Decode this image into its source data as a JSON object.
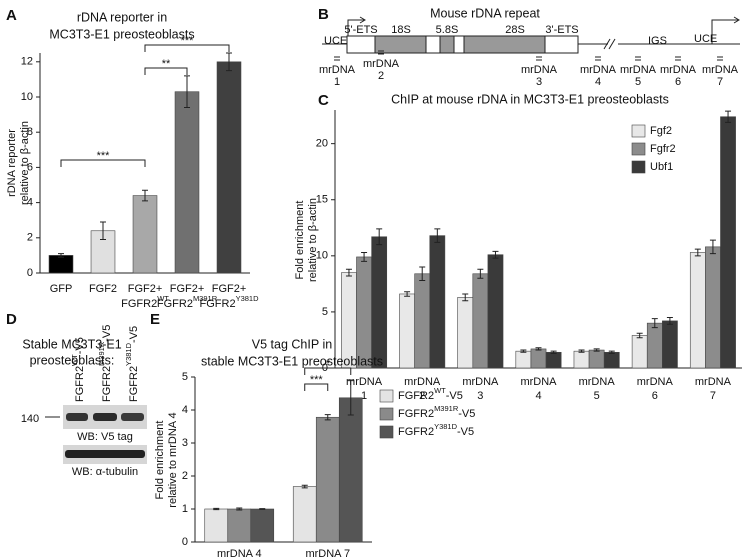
{
  "chart_data": [
    {
      "type": "bar",
      "panel_label": "A",
      "title": [
        "rDNA reporter in",
        "MC3T3-E1 preosteoblasts"
      ],
      "ylabel": [
        "rDNA reporter",
        "relative to  β-actin"
      ],
      "categories": [
        "GFP",
        "FGF2",
        "FGF2+",
        "FGF2+",
        "FGF2+"
      ],
      "category_sublabels": [
        null,
        null,
        "FGFR2",
        "FGFR2",
        "FGFR2"
      ],
      "category_superscripts": [
        null,
        null,
        "WT",
        "M391R",
        "Y381D"
      ],
      "values": [
        1.0,
        2.4,
        4.4,
        10.3,
        12.0
      ],
      "errors": [
        0.1,
        0.5,
        0.3,
        0.9,
        0.5
      ],
      "colors": [
        "#000000",
        "#e0e0e0",
        "#a8a8a8",
        "#707070",
        "#404040"
      ],
      "ylim": [
        0,
        12.5
      ],
      "yticks": [
        0,
        2,
        4,
        6,
        8,
        10,
        12
      ],
      "annotations": [
        "***",
        "**",
        "***"
      ]
    },
    {
      "type": "grouped_bar",
      "panel_label": "C",
      "title": [
        "ChIP at mouse rDNA in MC3T3-E1 preosteoblasts"
      ],
      "ylabel": [
        "Fold enrichment",
        "relative to β-actin"
      ],
      "category_prefix": "mrDNA",
      "categories": [
        "1",
        "2",
        "3",
        "4",
        "5",
        "6",
        "7"
      ],
      "series": [
        {
          "name": "Fgf2",
          "color": "#e8e8e8",
          "values": [
            8.5,
            6.6,
            6.3,
            1.5,
            1.5,
            2.9,
            10.3
          ],
          "errors": [
            0.3,
            0.2,
            0.3,
            0.1,
            0.1,
            0.2,
            0.3
          ]
        },
        {
          "name": "Fgfr2",
          "color": "#8c8c8c",
          "values": [
            9.9,
            8.4,
            8.4,
            1.7,
            1.6,
            4.0,
            10.8
          ],
          "errors": [
            0.4,
            0.6,
            0.4,
            0.1,
            0.1,
            0.4,
            0.6
          ]
        },
        {
          "name": "Ubf1",
          "color": "#3a3a3a",
          "values": [
            11.7,
            11.8,
            10.1,
            1.4,
            1.4,
            4.2,
            22.4
          ],
          "errors": [
            0.7,
            0.6,
            0.3,
            0.1,
            0.1,
            0.3,
            0.5
          ]
        }
      ],
      "ylim": [
        0,
        23
      ],
      "yticks": [
        0,
        5,
        10,
        15,
        20
      ],
      "legend": "upper right"
    },
    {
      "type": "grouped_bar",
      "panel_label": "E",
      "title": [
        "V5 tag ChIP in",
        "stable MC3T3-E1 preosteoblasts"
      ],
      "ylabel": [
        "Fold enrichment",
        "relative to mrDNA 4"
      ],
      "categories": [
        "mrDNA 4",
        "mrDNA 7"
      ],
      "series": [
        {
          "name": "FGFR2",
          "superscript": "WT",
          "suffix": "-V5",
          "color": "#e4e4e4",
          "values": [
            1.0,
            1.68
          ],
          "errors": [
            0.02,
            0.04
          ]
        },
        {
          "name": "FGFR2",
          "superscript": "M391R",
          "suffix": "-V5",
          "color": "#8a8a8a",
          "values": [
            1.0,
            3.78
          ],
          "errors": [
            0.03,
            0.08
          ]
        },
        {
          "name": "FGFR2",
          "superscript": "Y381D",
          "suffix": "-V5",
          "color": "#555555",
          "values": [
            1.0,
            4.37
          ],
          "errors": [
            0.01,
            0.52
          ]
        }
      ],
      "ylim": [
        0,
        5
      ],
      "yticks": [
        0,
        1,
        2,
        3,
        4,
        5
      ],
      "annotations": [
        "***",
        "*"
      ],
      "legend": "right"
    }
  ],
  "diagram": {
    "panel_label": "B",
    "title": "Mouse rDNA repeat",
    "segments": [
      "5'-ETS",
      "18S",
      "5.8S",
      "28S",
      "3'-ETS"
    ],
    "left_label": "UCE",
    "spacer_label": "IGS",
    "right_label": "UCE",
    "primer_prefix": "mrDNA",
    "primers": [
      "1",
      "2",
      "3",
      "4",
      "5",
      "6",
      "7"
    ]
  },
  "blot": {
    "panel_label": "D",
    "title": [
      "Stable MC3T3-E1",
      "preosteoblasts:"
    ],
    "lanes": [
      {
        "name": "FGFR2",
        "superscript": "WT",
        "suffix": "-V5"
      },
      {
        "name": "FGFR2",
        "superscript": "M391R",
        "suffix": "-V5"
      },
      {
        "name": "FGFR2",
        "superscript": "Y381D",
        "suffix": "-V5"
      }
    ],
    "marker": "140",
    "blots": [
      "WB: V5 tag",
      "WB:  α-tubulin"
    ]
  }
}
